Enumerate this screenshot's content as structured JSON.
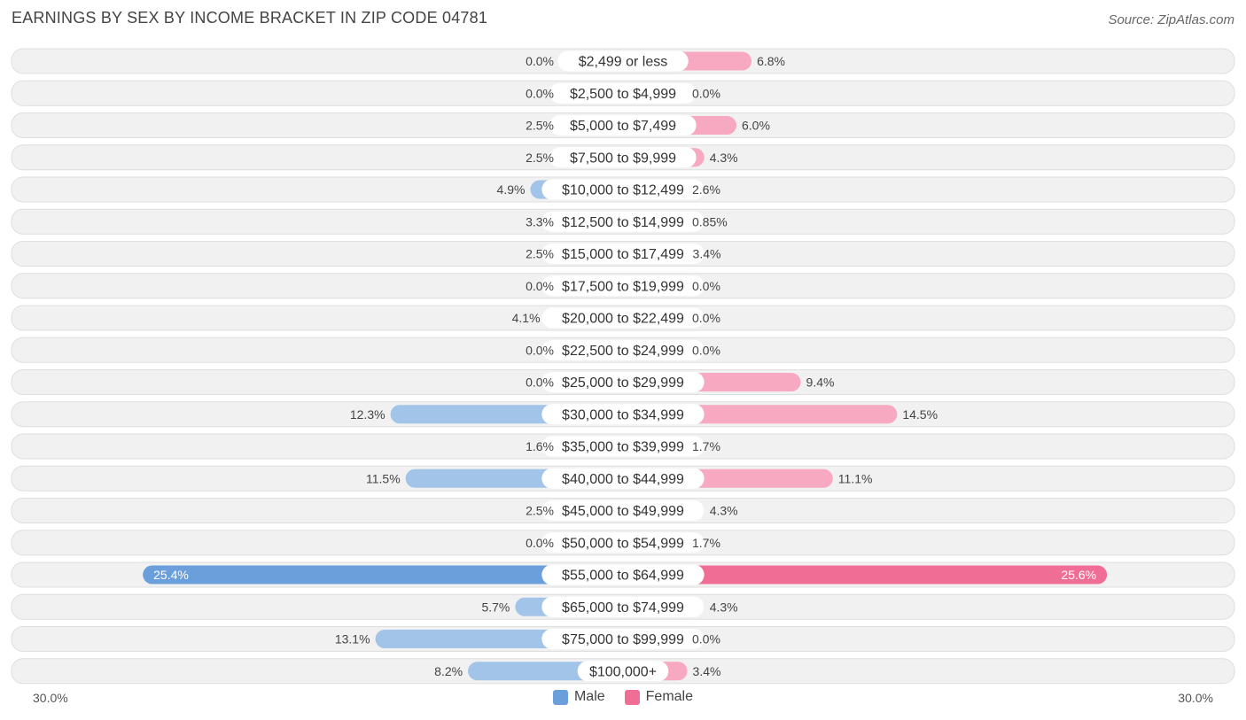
{
  "title": "EARNINGS BY SEX BY INCOME BRACKET IN ZIP CODE 04781",
  "source": "Source: ZipAtlas.com",
  "colors": {
    "male": "#a3c4e9",
    "male_strong": "#6a9fdc",
    "female": "#f6a9c1",
    "female_strong": "#f06d95",
    "row_bg": "#f1f1f1",
    "row_border": "#dedede"
  },
  "axis": {
    "left_label": "30.0%",
    "right_label": "30.0%"
  },
  "legend": [
    {
      "label": "Male",
      "color": "#6a9fdc"
    },
    {
      "label": "Female",
      "color": "#f06d95"
    }
  ],
  "chart_data": {
    "type": "bar",
    "orientation": "horizontal-diverging",
    "title": "EARNINGS BY SEX BY INCOME BRACKET IN ZIP CODE 04781",
    "xlim": [
      -30,
      30
    ],
    "categories": [
      "$2,499 or less",
      "$2,500 to $4,999",
      "$5,000 to $7,499",
      "$7,500 to $9,999",
      "$10,000 to $12,499",
      "$12,500 to $14,999",
      "$15,000 to $17,499",
      "$17,500 to $19,999",
      "$20,000 to $22,499",
      "$22,500 to $24,999",
      "$25,000 to $29,999",
      "$30,000 to $34,999",
      "$35,000 to $39,999",
      "$40,000 to $44,999",
      "$45,000 to $49,999",
      "$50,000 to $54,999",
      "$55,000 to $64,999",
      "$65,000 to $74,999",
      "$75,000 to $99,999",
      "$100,000+"
    ],
    "series": [
      {
        "name": "Male",
        "values": [
          0.0,
          0.0,
          2.5,
          2.5,
          4.9,
          3.3,
          2.5,
          0.0,
          4.1,
          0.0,
          0.0,
          12.3,
          1.6,
          11.5,
          2.5,
          0.0,
          25.4,
          5.7,
          13.1,
          8.2
        ],
        "labels": [
          "0.0%",
          "0.0%",
          "2.5%",
          "2.5%",
          "4.9%",
          "3.3%",
          "2.5%",
          "0.0%",
          "4.1%",
          "0.0%",
          "0.0%",
          "12.3%",
          "1.6%",
          "11.5%",
          "2.5%",
          "0.0%",
          "25.4%",
          "5.7%",
          "13.1%",
          "8.2%"
        ]
      },
      {
        "name": "Female",
        "values": [
          6.8,
          0.0,
          6.0,
          4.3,
          2.6,
          0.85,
          3.4,
          0.0,
          0.0,
          0.0,
          9.4,
          14.5,
          1.7,
          11.1,
          4.3,
          1.7,
          25.6,
          4.3,
          0.0,
          3.4
        ],
        "labels": [
          "6.8%",
          "0.0%",
          "6.0%",
          "4.3%",
          "2.6%",
          "0.85%",
          "3.4%",
          "0.0%",
          "0.0%",
          "0.0%",
          "9.4%",
          "14.5%",
          "1.7%",
          "11.1%",
          "4.3%",
          "1.7%",
          "25.6%",
          "4.3%",
          "0.0%",
          "3.4%"
        ]
      }
    ],
    "legend_position": "bottom-center"
  }
}
